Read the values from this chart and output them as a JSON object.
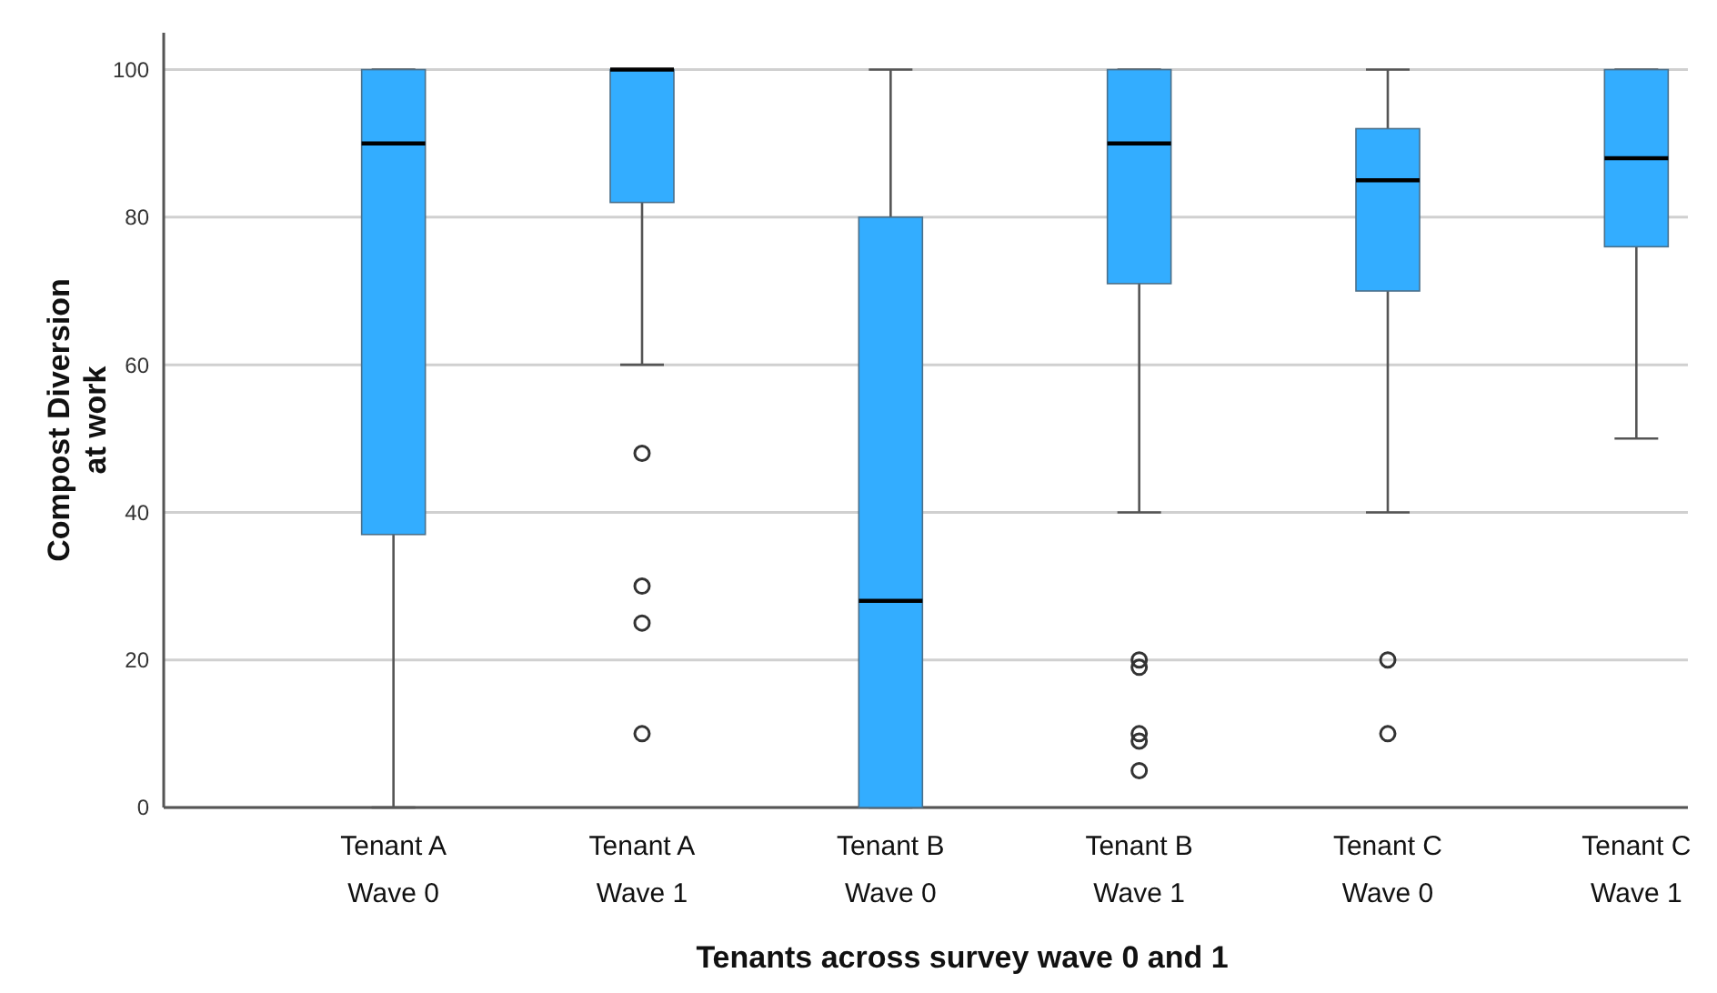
{
  "chart_data": {
    "type": "box",
    "xlabel": "Tenants across survey wave 0 and 1",
    "ylabel": "Compost Diversion\nat work",
    "categories": [
      "Tenant A\nWave 0",
      "Tenant A\nWave 1",
      "Tenant B\nWave 0",
      "Tenant B\nWave 1",
      "Tenant C\nWave 0",
      "Tenant C\nWave 1"
    ],
    "color": "#33adff",
    "ylim": [
      0,
      105
    ],
    "yticks": [
      0,
      20,
      40,
      60,
      80,
      100
    ],
    "grid": "y",
    "boxes": [
      {
        "low": 0,
        "q1": 37,
        "median": 90,
        "q3": 100,
        "high": 100
      },
      {
        "low": 60,
        "q1": 82,
        "median": 100,
        "q3": 100,
        "high": 100,
        "outliers": [
          48,
          30,
          25,
          10
        ]
      },
      {
        "low": 0,
        "q1": 0,
        "median": 28,
        "q3": 80,
        "high": 100
      },
      {
        "low": 40,
        "q1": 71,
        "median": 90,
        "q3": 100,
        "high": 100,
        "outliers": [
          20,
          19,
          10,
          9,
          5
        ]
      },
      {
        "low": 40,
        "q1": 70,
        "median": 85,
        "q3": 92,
        "high": 100,
        "outliers": [
          20,
          10
        ]
      },
      {
        "low": 50,
        "q1": 76,
        "median": 88,
        "q3": 100,
        "high": 100
      }
    ]
  }
}
